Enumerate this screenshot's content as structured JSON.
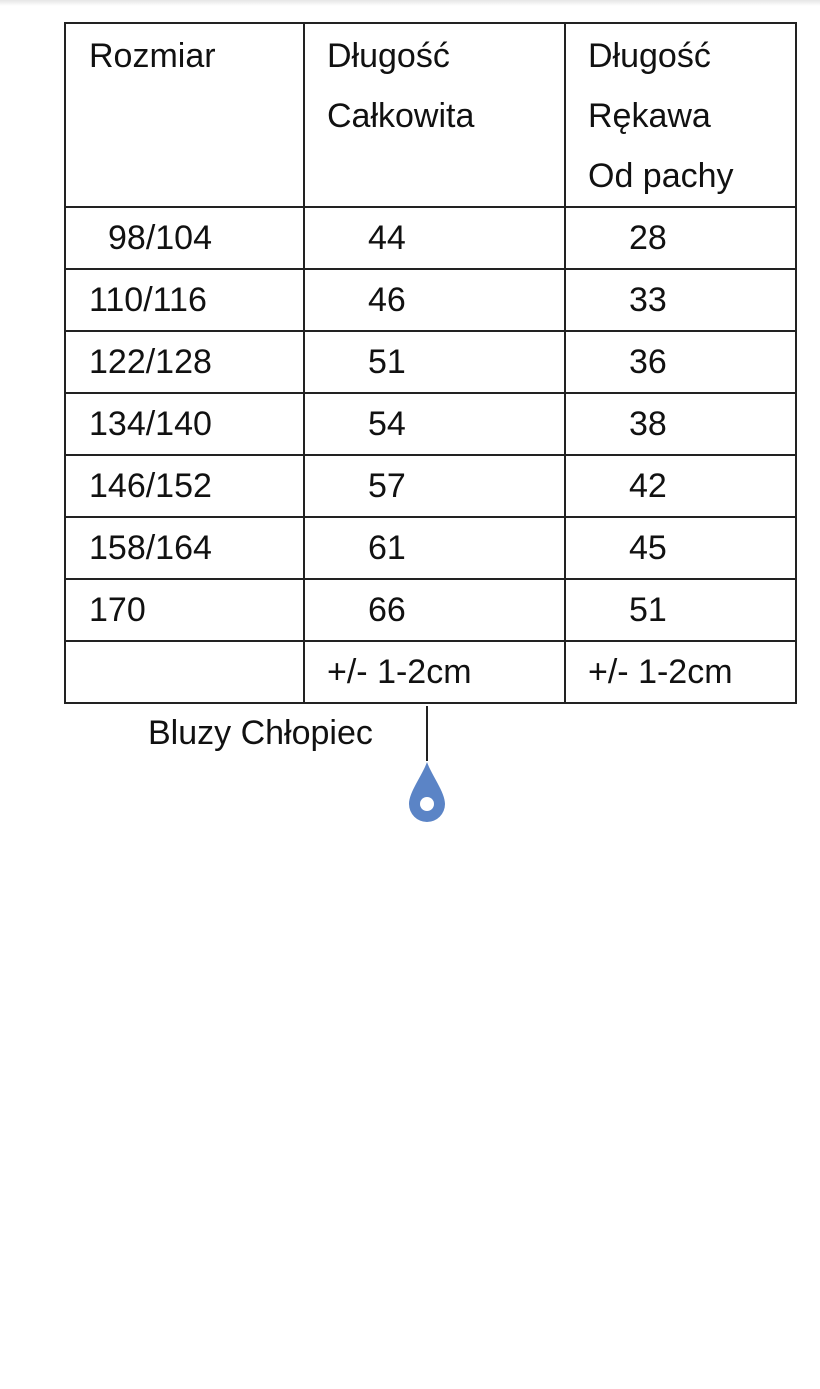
{
  "table": {
    "headers": [
      [
        "Rozmiar"
      ],
      [
        "Długość",
        "Całkowita"
      ],
      [
        "Długość",
        "Rękawa",
        "Od pachy"
      ]
    ],
    "rows": [
      [
        "98/104",
        "44",
        "28"
      ],
      [
        "110/116",
        "46",
        "33"
      ],
      [
        "122/128",
        "51",
        "36"
      ],
      [
        "134/140",
        "54",
        "38"
      ],
      [
        "146/152",
        "57",
        "42"
      ],
      [
        "158/164",
        "61",
        "45"
      ],
      [
        "170",
        "66",
        "51"
      ]
    ],
    "footer": [
      "",
      "+/- 1-2cm",
      "+/- 1-2cm"
    ]
  },
  "caption": "Bluzy Chłopiec",
  "colors": {
    "cursor_handle": "#5b84c6"
  },
  "icons": {
    "cursor_handle": "text-selection-handle-icon"
  }
}
